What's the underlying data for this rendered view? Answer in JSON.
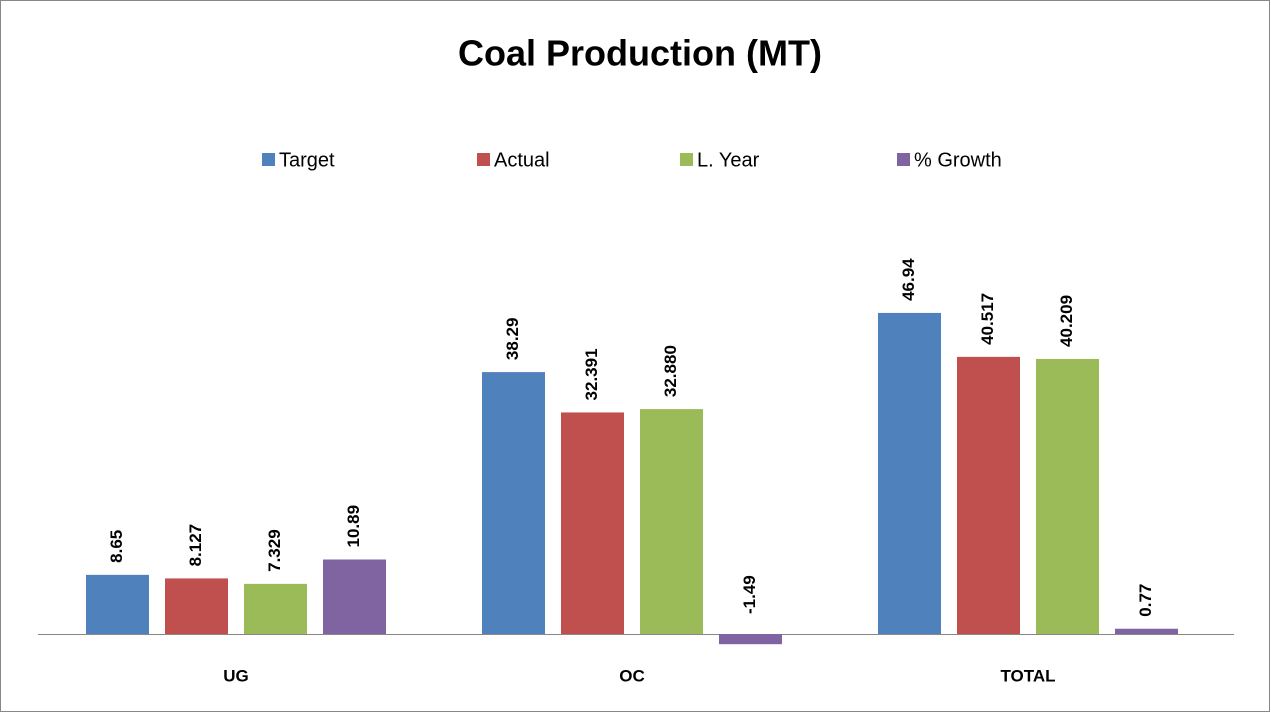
{
  "chart_data": {
    "type": "bar",
    "title": "Coal Production (MT)",
    "categories": [
      "UG",
      "OC",
      "TOTAL"
    ],
    "series": [
      {
        "name": "Target",
        "color": "#4f81bd",
        "values": [
          8.65,
          38.29,
          46.94
        ]
      },
      {
        "name": "Actual",
        "color": "#c0504d",
        "values": [
          8.127,
          32.391,
          40.517
        ]
      },
      {
        "name": "L. Year",
        "color": "#9bbb59",
        "values": [
          7.329,
          32.88,
          40.209
        ],
        "value_labels": [
          "7.329",
          "32.880",
          "40.209"
        ]
      },
      {
        "name": "% Growth",
        "color": "#8064a2",
        "values": [
          10.89,
          -1.49,
          0.77
        ]
      }
    ],
    "legend": "top"
  }
}
